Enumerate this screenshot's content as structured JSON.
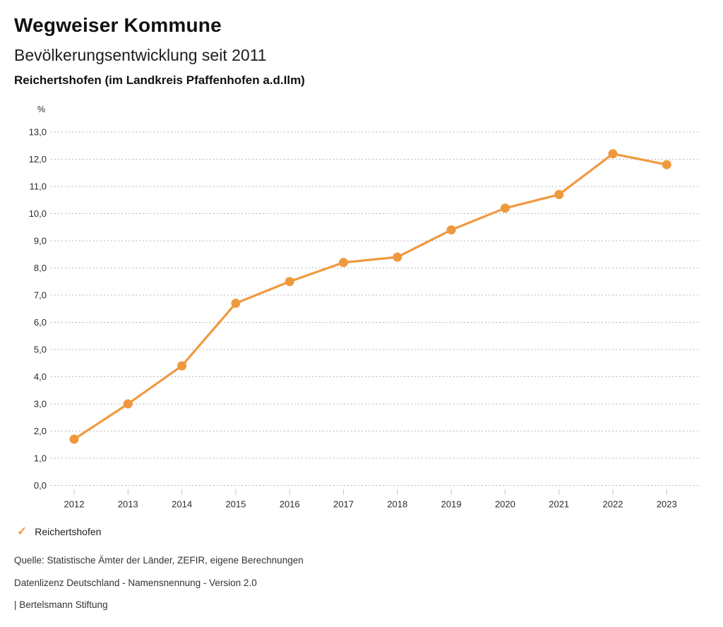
{
  "header": {
    "title": "Wegweiser Kommune",
    "subtitle": "Bevölkerungsentwicklung seit 2011",
    "region": "Reichertshofen (im Landkreis Pfaffenhofen a.d.Ilm)"
  },
  "chart_data": {
    "type": "line",
    "title": "Bevölkerungsentwicklung seit 2011",
    "unit_label": "%",
    "xlabel": "",
    "ylabel": "%",
    "categories": [
      "2012",
      "2013",
      "2014",
      "2015",
      "2016",
      "2017",
      "2018",
      "2019",
      "2020",
      "2021",
      "2022",
      "2023"
    ],
    "series": [
      {
        "name": "Reichertshofen",
        "values": [
          1.7,
          3.0,
          4.4,
          6.7,
          7.5,
          8.2,
          8.4,
          9.4,
          10.2,
          10.7,
          12.2,
          11.8
        ],
        "color": "#EF993E",
        "marker": "circle"
      }
    ],
    "ylim": [
      0,
      13
    ],
    "ytick_step": 1.0,
    "ytick_labels_top_to_bottom": [
      "13,0",
      "12,0",
      "11,0",
      "10,0",
      "9,0",
      "8,0",
      "7,0",
      "6,0",
      "5,0",
      "4,0",
      "3,0",
      "2,0",
      "1,0",
      "0,0"
    ],
    "grid": "horizontal-dotted",
    "legend_position": "bottom-left"
  },
  "legend": {
    "check_icon": "✓",
    "label": "Reichertshofen"
  },
  "footer": {
    "source": "Quelle: Statistische Ämter der Länder, ZEFIR, eigene Berechnungen",
    "license": "Datenlizenz Deutschland - Namensnennung - Version 2.0",
    "publisher": "| Bertelsmann Stiftung"
  },
  "colors": {
    "accent": "#EF993E",
    "gridline": "#b8b8b8",
    "axis_text": "#2b2b2b",
    "background": "#ffffff"
  }
}
